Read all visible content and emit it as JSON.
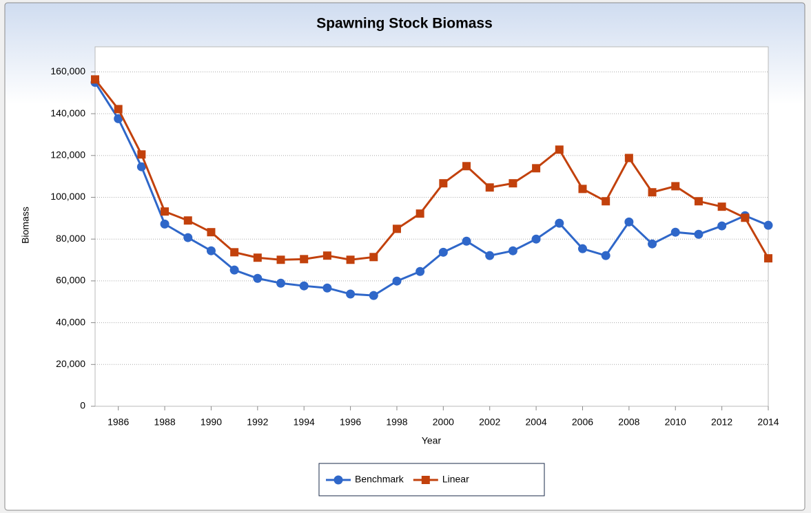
{
  "chart_data": {
    "type": "line",
    "title": "Spawning Stock Biomass",
    "x_label": "Year",
    "y_label": "Biomass",
    "x": [
      1985,
      1986,
      1987,
      1988,
      1989,
      1990,
      1991,
      1992,
      1993,
      1994,
      1995,
      1996,
      1997,
      1998,
      1999,
      2000,
      2001,
      2002,
      2003,
      2004,
      2005,
      2006,
      2007,
      2008,
      2009,
      2010,
      2011,
      2012,
      2013,
      2014
    ],
    "series": [
      {
        "name": "Benchmark",
        "color": "#2f67c9",
        "marker": "circle",
        "values": [
          155000,
          137600,
          114600,
          87200,
          80700,
          74400,
          65200,
          61200,
          58900,
          57600,
          56600,
          53700,
          53000,
          59900,
          64500,
          73700,
          79000,
          72100,
          74400,
          80000,
          87600,
          75400,
          72100,
          88200,
          77700,
          83300,
          82300,
          86300,
          91200,
          86600
        ]
      },
      {
        "name": "Linear",
        "color": "#c2410c",
        "marker": "square",
        "values": [
          156400,
          142200,
          120500,
          93200,
          88900,
          83300,
          73700,
          71100,
          70100,
          70400,
          72100,
          70100,
          71400,
          84900,
          92200,
          106700,
          114900,
          104700,
          106700,
          113900,
          122800,
          104000,
          98100,
          118800,
          102400,
          105300,
          98100,
          95500,
          90200,
          70800
        ]
      }
    ],
    "xlim": [
      1985,
      2014
    ],
    "xticks": [
      1986,
      1988,
      1990,
      1992,
      1994,
      1996,
      1998,
      2000,
      2002,
      2004,
      2006,
      2008,
      2010,
      2012,
      2014
    ],
    "ylim": [
      0,
      172000
    ],
    "yticks": [
      0,
      {
        "value": 20000,
        "label": "20,000"
      },
      {
        "value": 40000,
        "label": "40,000"
      },
      {
        "value": 60000,
        "label": "60,000"
      },
      {
        "value": 80000,
        "label": "80,000"
      },
      {
        "value": 100000,
        "label": "100,000"
      },
      {
        "value": 120000,
        "label": "120,000"
      },
      {
        "value": 140000,
        "label": "140,000"
      },
      {
        "value": 160000,
        "label": "160,000"
      }
    ],
    "grid": true,
    "legend": "bottom"
  }
}
